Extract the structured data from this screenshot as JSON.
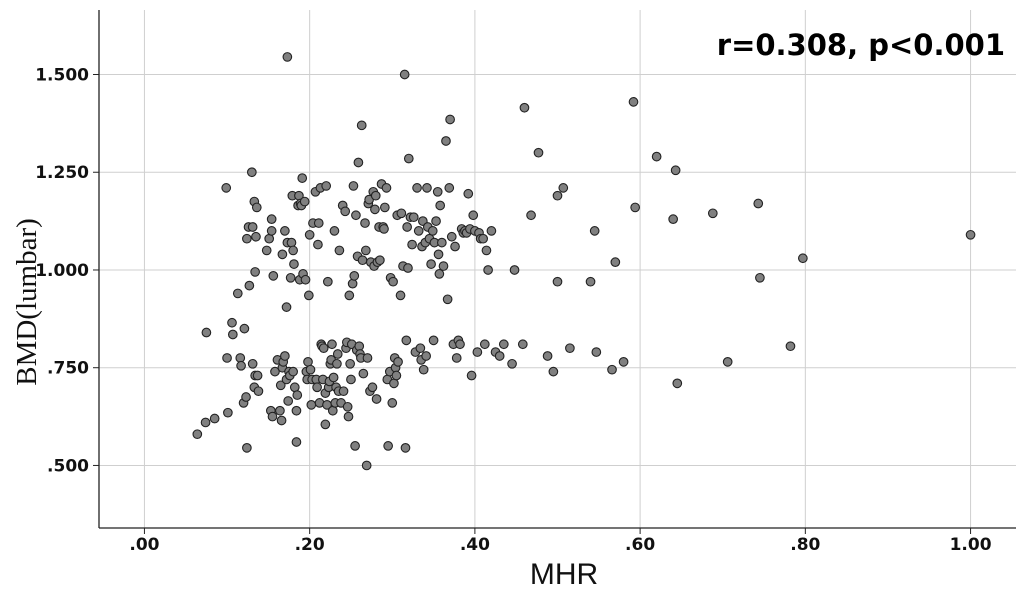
{
  "chart_data": {
    "type": "scatter",
    "title": "",
    "xlabel": "MHR",
    "ylabel": "BMD(lumbar)",
    "annotation": "r=0.308, p<0.001",
    "xlim": [
      -0.055,
      1.055
    ],
    "ylim": [
      0.34,
      1.665
    ],
    "xticks": [
      0.0,
      0.2,
      0.4,
      0.6,
      0.8,
      1.0
    ],
    "xtick_labels": [
      ".00",
      ".20",
      ".40",
      ".60",
      ".80",
      "1.00"
    ],
    "yticks": [
      0.5,
      0.75,
      1.0,
      1.25,
      1.5
    ],
    "ytick_labels": [
      ".500",
      ".750",
      "1.000",
      "1.250",
      "1.500"
    ],
    "grid": true,
    "marker_color": "#808080",
    "marker_edge": "#222222",
    "points": [
      [
        0.064,
        0.58
      ],
      [
        0.074,
        0.61
      ],
      [
        0.075,
        0.84
      ],
      [
        0.085,
        0.62
      ],
      [
        0.099,
        1.21
      ],
      [
        0.1,
        0.775
      ],
      [
        0.101,
        0.635
      ],
      [
        0.106,
        0.865
      ],
      [
        0.107,
        0.835
      ],
      [
        0.113,
        0.94
      ],
      [
        0.116,
        0.775
      ],
      [
        0.117,
        0.755
      ],
      [
        0.12,
        0.66
      ],
      [
        0.121,
        0.85
      ],
      [
        0.123,
        0.675
      ],
      [
        0.124,
        1.08
      ],
      [
        0.124,
        0.545
      ],
      [
        0.126,
        1.11
      ],
      [
        0.127,
        0.96
      ],
      [
        0.13,
        1.25
      ],
      [
        0.131,
        1.11
      ],
      [
        0.131,
        0.76
      ],
      [
        0.133,
        0.7
      ],
      [
        0.133,
        1.175
      ],
      [
        0.134,
        0.995
      ],
      [
        0.134,
        0.73
      ],
      [
        0.135,
        1.085
      ],
      [
        0.136,
        1.16
      ],
      [
        0.137,
        0.73
      ],
      [
        0.138,
        0.69
      ],
      [
        0.148,
        1.05
      ],
      [
        0.151,
        1.08
      ],
      [
        0.153,
        0.64
      ],
      [
        0.154,
        1.1
      ],
      [
        0.154,
        1.13
      ],
      [
        0.155,
        0.625
      ],
      [
        0.156,
        0.985
      ],
      [
        0.158,
        0.74
      ],
      [
        0.161,
        0.77
      ],
      [
        0.164,
        0.64
      ],
      [
        0.165,
        0.705
      ],
      [
        0.166,
        0.615
      ],
      [
        0.167,
        0.75
      ],
      [
        0.167,
        1.04
      ],
      [
        0.168,
        0.765
      ],
      [
        0.17,
        1.1
      ],
      [
        0.17,
        0.78
      ],
      [
        0.172,
        0.905
      ],
      [
        0.172,
        0.72
      ],
      [
        0.173,
        1.545
      ],
      [
        0.173,
        1.07
      ],
      [
        0.174,
        0.665
      ],
      [
        0.175,
        0.74
      ],
      [
        0.176,
        0.73
      ],
      [
        0.177,
        0.98
      ],
      [
        0.178,
        1.07
      ],
      [
        0.179,
        1.19
      ],
      [
        0.18,
        1.05
      ],
      [
        0.18,
        0.74
      ],
      [
        0.181,
        1.015
      ],
      [
        0.182,
        0.7
      ],
      [
        0.184,
        0.56
      ],
      [
        0.184,
        0.64
      ],
      [
        0.185,
        0.68
      ],
      [
        0.186,
        1.165
      ],
      [
        0.187,
        1.19
      ],
      [
        0.188,
        0.975
      ],
      [
        0.189,
        1.17
      ],
      [
        0.19,
        1.165
      ],
      [
        0.191,
        1.235
      ],
      [
        0.192,
        0.99
      ],
      [
        0.194,
        1.175
      ],
      [
        0.195,
        0.975
      ],
      [
        0.196,
        0.74
      ],
      [
        0.197,
        0.72
      ],
      [
        0.198,
        0.765
      ],
      [
        0.199,
        0.935
      ],
      [
        0.2,
        1.09
      ],
      [
        0.201,
        0.745
      ],
      [
        0.202,
        0.655
      ],
      [
        0.203,
        0.72
      ],
      [
        0.204,
        1.12
      ],
      [
        0.207,
        1.2
      ],
      [
        0.208,
        0.72
      ],
      [
        0.209,
        0.7
      ],
      [
        0.21,
        1.065
      ],
      [
        0.211,
        1.12
      ],
      [
        0.212,
        0.66
      ],
      [
        0.213,
        1.21
      ],
      [
        0.214,
        0.81
      ],
      [
        0.215,
        0.805
      ],
      [
        0.216,
        0.72
      ],
      [
        0.217,
        0.8
      ],
      [
        0.219,
        0.605
      ],
      [
        0.219,
        0.685
      ],
      [
        0.22,
        1.215
      ],
      [
        0.221,
        0.655
      ],
      [
        0.222,
        0.97
      ],
      [
        0.223,
        0.7
      ],
      [
        0.224,
        0.715
      ],
      [
        0.225,
        0.76
      ],
      [
        0.226,
        0.77
      ],
      [
        0.227,
        0.81
      ],
      [
        0.228,
        0.64
      ],
      [
        0.229,
        0.725
      ],
      [
        0.23,
        1.1
      ],
      [
        0.231,
        0.66
      ],
      [
        0.232,
        0.7
      ],
      [
        0.233,
        0.76
      ],
      [
        0.234,
        0.785
      ],
      [
        0.235,
        0.69
      ],
      [
        0.236,
        1.05
      ],
      [
        0.238,
        0.66
      ],
      [
        0.24,
        1.165
      ],
      [
        0.241,
        0.69
      ],
      [
        0.243,
        1.15
      ],
      [
        0.244,
        0.8
      ],
      [
        0.245,
        0.815
      ],
      [
        0.246,
        0.65
      ],
      [
        0.247,
        0.625
      ],
      [
        0.248,
        0.935
      ],
      [
        0.249,
        0.76
      ],
      [
        0.25,
        0.72
      ],
      [
        0.251,
        0.81
      ],
      [
        0.252,
        0.965
      ],
      [
        0.253,
        1.215
      ],
      [
        0.254,
        0.985
      ],
      [
        0.255,
        0.55
      ],
      [
        0.256,
        1.14
      ],
      [
        0.257,
        0.795
      ],
      [
        0.258,
        1.035
      ],
      [
        0.259,
        1.275
      ],
      [
        0.26,
        0.805
      ],
      [
        0.261,
        0.785
      ],
      [
        0.262,
        0.775
      ],
      [
        0.263,
        1.37
      ],
      [
        0.264,
        1.025
      ],
      [
        0.265,
        0.735
      ],
      [
        0.267,
        1.12
      ],
      [
        0.268,
        1.05
      ],
      [
        0.269,
        0.5
      ],
      [
        0.27,
        0.775
      ],
      [
        0.271,
        1.17
      ],
      [
        0.272,
        1.18
      ],
      [
        0.273,
        0.69
      ],
      [
        0.274,
        1.02
      ],
      [
        0.276,
        0.7
      ],
      [
        0.277,
        1.2
      ],
      [
        0.278,
        1.01
      ],
      [
        0.279,
        1.155
      ],
      [
        0.28,
        1.19
      ],
      [
        0.281,
        0.67
      ],
      [
        0.282,
        1.02
      ],
      [
        0.284,
        1.11
      ],
      [
        0.285,
        1.025
      ],
      [
        0.287,
        1.22
      ],
      [
        0.289,
        1.11
      ],
      [
        0.29,
        1.105
      ],
      [
        0.291,
        1.16
      ],
      [
        0.293,
        1.21
      ],
      [
        0.294,
        0.72
      ],
      [
        0.295,
        0.55
      ],
      [
        0.297,
        0.74
      ],
      [
        0.298,
        0.98
      ],
      [
        0.3,
        0.66
      ],
      [
        0.301,
        0.97
      ],
      [
        0.302,
        0.71
      ],
      [
        0.303,
        0.775
      ],
      [
        0.304,
        0.75
      ],
      [
        0.305,
        0.73
      ],
      [
        0.306,
        1.14
      ],
      [
        0.307,
        0.765
      ],
      [
        0.31,
        0.935
      ],
      [
        0.311,
        1.145
      ],
      [
        0.313,
        1.01
      ],
      [
        0.315,
        1.5
      ],
      [
        0.316,
        0.545
      ],
      [
        0.317,
        0.82
      ],
      [
        0.318,
        1.11
      ],
      [
        0.319,
        1.005
      ],
      [
        0.32,
        1.285
      ],
      [
        0.322,
        1.135
      ],
      [
        0.324,
        1.065
      ],
      [
        0.326,
        1.135
      ],
      [
        0.328,
        0.79
      ],
      [
        0.33,
        1.21
      ],
      [
        0.332,
        1.1
      ],
      [
        0.334,
        0.8
      ],
      [
        0.335,
        0.77
      ],
      [
        0.336,
        1.06
      ],
      [
        0.337,
        1.125
      ],
      [
        0.338,
        0.745
      ],
      [
        0.34,
        1.07
      ],
      [
        0.341,
        0.78
      ],
      [
        0.342,
        1.21
      ],
      [
        0.343,
        1.11
      ],
      [
        0.345,
        1.08
      ],
      [
        0.347,
        1.015
      ],
      [
        0.349,
        1.1
      ],
      [
        0.35,
        0.82
      ],
      [
        0.351,
        1.07
      ],
      [
        0.353,
        1.125
      ],
      [
        0.355,
        1.2
      ],
      [
        0.356,
        1.04
      ],
      [
        0.357,
        0.99
      ],
      [
        0.358,
        1.165
      ],
      [
        0.36,
        1.07
      ],
      [
        0.362,
        1.01
      ],
      [
        0.365,
        1.33
      ],
      [
        0.367,
        0.925
      ],
      [
        0.369,
        1.21
      ],
      [
        0.37,
        1.385
      ],
      [
        0.372,
        1.085
      ],
      [
        0.374,
        0.81
      ],
      [
        0.376,
        1.06
      ],
      [
        0.378,
        0.775
      ],
      [
        0.38,
        0.82
      ],
      [
        0.382,
        0.81
      ],
      [
        0.384,
        1.105
      ],
      [
        0.386,
        1.095
      ],
      [
        0.388,
        1.1
      ],
      [
        0.39,
        1.095
      ],
      [
        0.392,
        1.195
      ],
      [
        0.394,
        1.105
      ],
      [
        0.396,
        0.73
      ],
      [
        0.398,
        1.14
      ],
      [
        0.4,
        1.1
      ],
      [
        0.403,
        0.79
      ],
      [
        0.405,
        1.095
      ],
      [
        0.407,
        1.08
      ],
      [
        0.41,
        1.08
      ],
      [
        0.412,
        0.81
      ],
      [
        0.414,
        1.05
      ],
      [
        0.416,
        1.0
      ],
      [
        0.42,
        1.1
      ],
      [
        0.425,
        0.79
      ],
      [
        0.43,
        0.78
      ],
      [
        0.435,
        0.81
      ],
      [
        0.445,
        0.76
      ],
      [
        0.448,
        1.0
      ],
      [
        0.458,
        0.81
      ],
      [
        0.46,
        1.415
      ],
      [
        0.468,
        1.14
      ],
      [
        0.477,
        1.3
      ],
      [
        0.488,
        0.78
      ],
      [
        0.495,
        0.74
      ],
      [
        0.5,
        0.97
      ],
      [
        0.5,
        1.19
      ],
      [
        0.507,
        1.21
      ],
      [
        0.515,
        0.8
      ],
      [
        0.54,
        0.97
      ],
      [
        0.545,
        1.1
      ],
      [
        0.547,
        0.79
      ],
      [
        0.566,
        0.745
      ],
      [
        0.57,
        1.02
      ],
      [
        0.58,
        0.765
      ],
      [
        0.592,
        1.43
      ],
      [
        0.594,
        1.16
      ],
      [
        0.62,
        1.29
      ],
      [
        0.64,
        1.13
      ],
      [
        0.643,
        1.255
      ],
      [
        0.645,
        0.71
      ],
      [
        0.688,
        1.145
      ],
      [
        0.706,
        0.765
      ],
      [
        0.743,
        1.17
      ],
      [
        0.745,
        0.98
      ],
      [
        0.782,
        0.805
      ],
      [
        0.797,
        1.03
      ],
      [
        1.0,
        1.09
      ]
    ]
  }
}
